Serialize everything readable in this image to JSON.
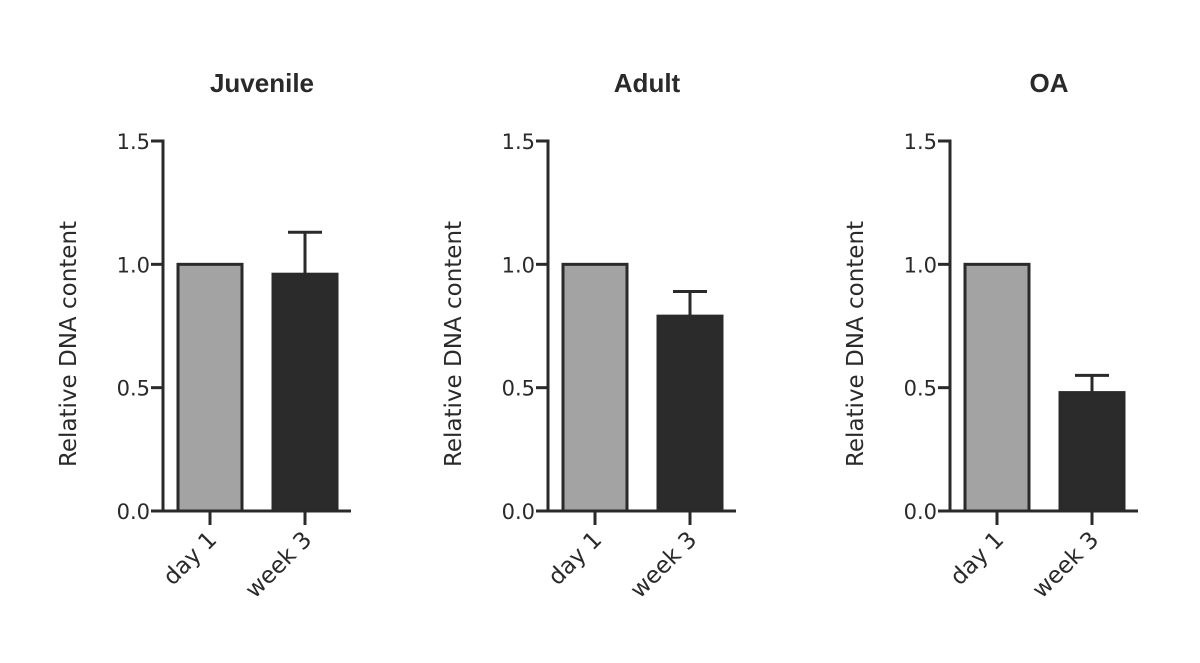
{
  "chart_data": [
    {
      "type": "bar",
      "title": "Juvenile",
      "ylabel": "Relative DNA content",
      "xlabel": "",
      "categories": [
        "day 1",
        "week 3"
      ],
      "values": [
        1.0,
        0.96
      ],
      "error_upper": [
        0,
        0.17
      ],
      "ylim": [
        0,
        1.5
      ],
      "yticks": [
        "0.0",
        "0.5",
        "1.0",
        "1.5"
      ],
      "colors": [
        "#a3a3a3",
        "#2b2b2b"
      ]
    },
    {
      "type": "bar",
      "title": "Adult",
      "ylabel": "Relative DNA content",
      "xlabel": "",
      "categories": [
        "day 1",
        "week 3"
      ],
      "values": [
        1.0,
        0.79
      ],
      "error_upper": [
        0,
        0.1
      ],
      "ylim": [
        0,
        1.5
      ],
      "yticks": [
        "0.0",
        "0.5",
        "1.0",
        "1.5"
      ],
      "colors": [
        "#a3a3a3",
        "#2b2b2b"
      ]
    },
    {
      "type": "bar",
      "title": "OA",
      "ylabel": "Relative DNA content",
      "xlabel": "",
      "categories": [
        "day 1",
        "week 3"
      ],
      "values": [
        1.0,
        0.48
      ],
      "error_upper": [
        0,
        0.07
      ],
      "ylim": [
        0,
        1.5
      ],
      "yticks": [
        "0.0",
        "0.5",
        "1.0",
        "1.5"
      ],
      "colors": [
        "#a3a3a3",
        "#2b2b2b"
      ]
    }
  ]
}
